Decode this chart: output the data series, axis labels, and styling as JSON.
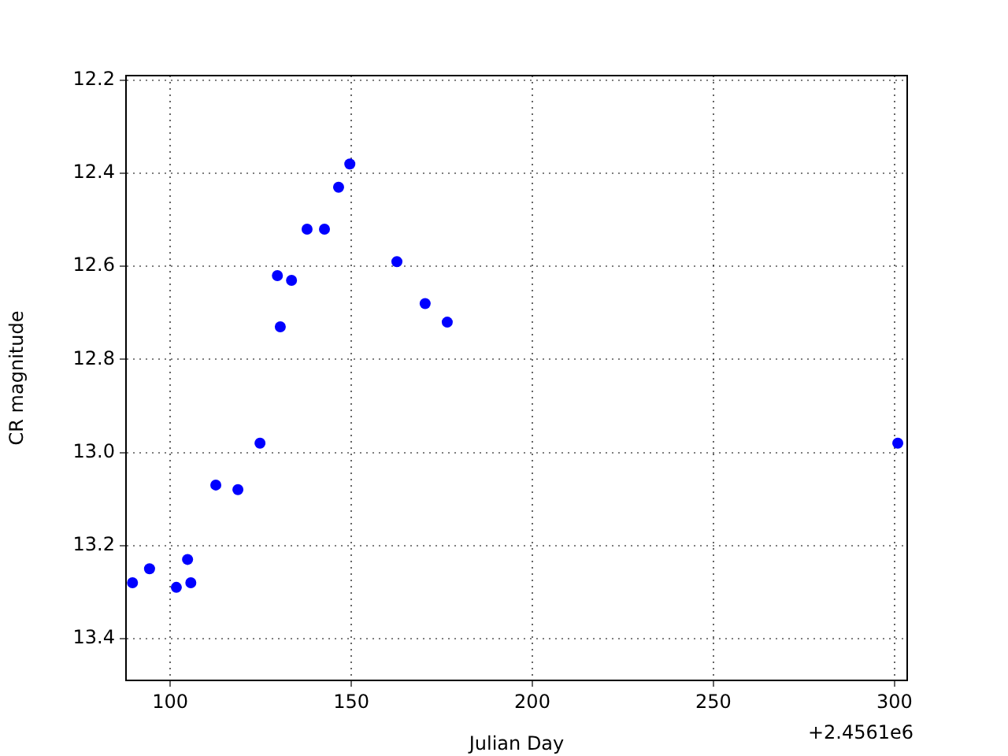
{
  "chart_data": {
    "type": "scatter",
    "xlabel": "Julian Day",
    "ylabel": "CR magnitude",
    "annotations": [
      "+2.4561e6"
    ],
    "series": [
      {
        "color": "#0000ff",
        "x": [
          89.6,
          94.3,
          101.7,
          104.8,
          105.7,
          112.6,
          118.7,
          124.8,
          129.6,
          130.4,
          133.5,
          137.8,
          142.6,
          146.5,
          149.6,
          162.6,
          170.4,
          176.5,
          300.9
        ],
        "values": [
          13.28,
          13.25,
          13.29,
          13.23,
          13.28,
          13.07,
          13.08,
          12.98,
          12.62,
          12.73,
          12.63,
          12.52,
          12.52,
          12.43,
          12.38,
          12.59,
          12.68,
          12.72,
          12.98
        ]
      }
    ],
    "xlim": [
      87.8,
      303.5
    ],
    "xticks": [
      100,
      150,
      200,
      250,
      300
    ],
    "ylim": [
      13.49,
      12.19
    ],
    "yticks": [
      12.2,
      12.4,
      12.6,
      12.8,
      {
        "value": 13,
        "label": "13.0"
      },
      13.2,
      13.4
    ],
    "grid": true,
    "legend": false,
    "marker": "circle"
  }
}
